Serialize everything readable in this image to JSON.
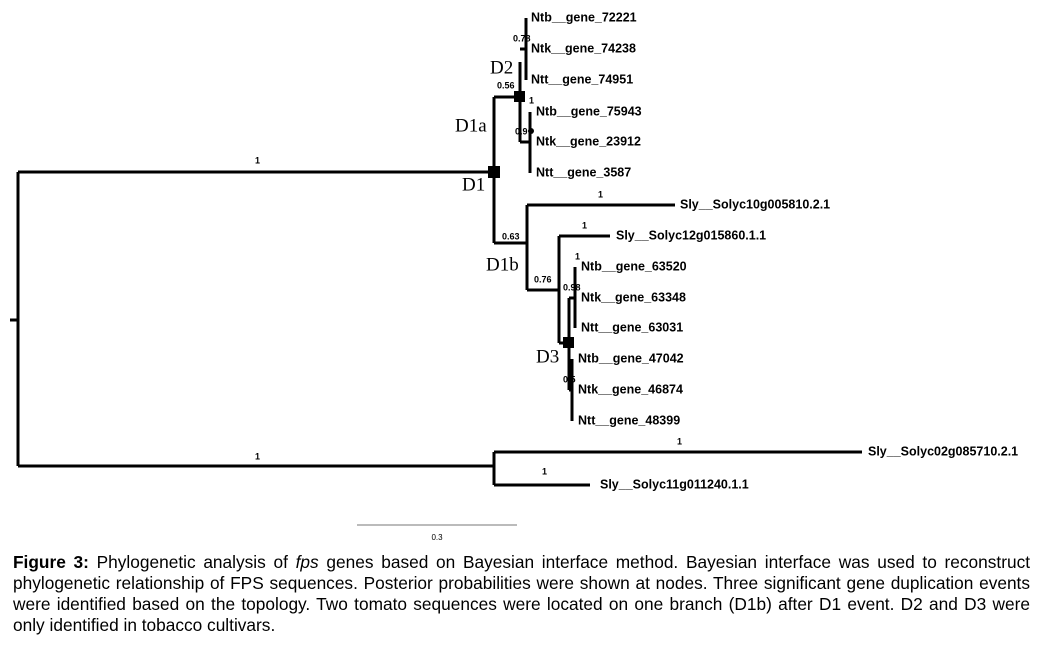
{
  "leaves": [
    "Ntb__gene_72221",
    "Ntk__gene_74238",
    "Ntt__gene_74951",
    "Ntb__gene_75943",
    "Ntk__gene_23912",
    "Ntt__gene_3587",
    "Sly__Solyc10g005810.2.1",
    "Sly__Solyc12g015860.1.1",
    "Ntb__gene_63520",
    "Ntk__gene_63348",
    "Ntt__gene_63031",
    "Ntb__gene_47042",
    "Ntk__gene_46874",
    "Ntt__gene_48399",
    "Sly__Solyc02g085710.2.1",
    "Sly__Solyc11g011240.1.1"
  ],
  "supports": [
    "1",
    "0.56",
    "0.78",
    "1",
    "0.9",
    "0.63",
    "1",
    "0.76",
    "1",
    "1",
    "0.98",
    "0.5",
    "1",
    "1",
    "1"
  ],
  "nodes": [
    "D1",
    "D1a",
    "D1b",
    "D2",
    "D3"
  ],
  "scale_bar": "0.3",
  "caption": {
    "label": "Figure 3:",
    "text_before": "Phylogenetic analysis of",
    "emphasis": "fps",
    "text_after": "genes based on Bayesian interface method. Bayesian interface was used to reconstruct phylogenetic relationship of FPS sequences. Posterior probabilities were shown at nodes. Three significant gene duplication events were identified based on the topology. Two tomato sequences were located on one branch (D1b) after D1 event. D2 and D3 were only identified in tobacco cultivars."
  }
}
